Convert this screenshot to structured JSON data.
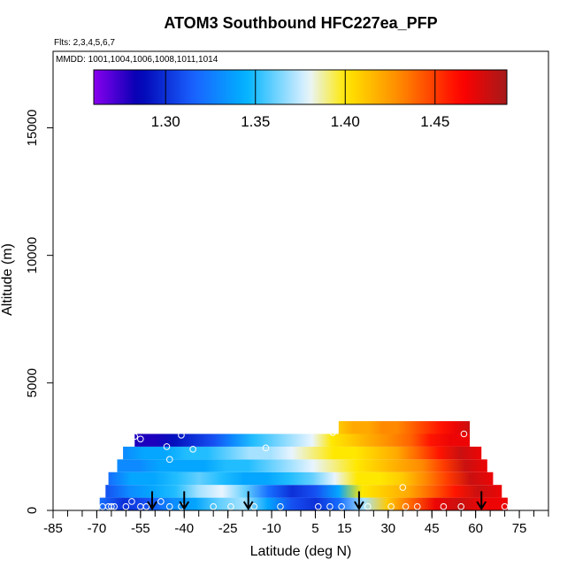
{
  "chart_data": {
    "type": "heatmap",
    "title": "ATOM3 Southbound HFC227ea_PFP",
    "flights_label": "Flts: 2,3,4,5,6,7",
    "mmdd_label": "MMDD: 1001,1004,1006,1008,1011,1014",
    "xlabel": "Latitude (deg N)",
    "ylabel": "Altitude (m)",
    "xlim": [
      -85,
      85
    ],
    "ylim": [
      0,
      18000
    ],
    "x_ticks": [
      "-85",
      "-70",
      "-55",
      "-40",
      "-25",
      "-10",
      "5",
      "15",
      "30",
      "45",
      "60",
      "75"
    ],
    "y_ticks": [
      "0",
      "5000",
      "10000",
      "15000"
    ],
    "colorbar": {
      "range": [
        1.26,
        1.49
      ],
      "ticks": [
        "1.30",
        "1.35",
        "1.40",
        "1.45"
      ]
    },
    "colors": {
      "violet": "#8a00f0",
      "dark_blue": "#0000b0",
      "blue": "#1a60ff",
      "sky": "#00b4ff",
      "light": "#e8f4ff",
      "yellow": "#ffe800",
      "orange": "#ff8a00",
      "red": "#ff0000",
      "dark_red": "#a51a1a"
    },
    "altitude_bands": [
      {
        "alt": [
          0,
          500
        ],
        "lat": [
          -69,
          71
        ],
        "values": [
          1.32,
          1.3,
          1.31,
          1.33,
          1.34,
          1.36,
          1.37,
          1.34,
          1.31,
          1.3,
          1.32,
          1.37,
          1.41,
          1.44,
          1.47,
          1.48,
          1.47,
          1.47
        ]
      },
      {
        "alt": [
          500,
          1000
        ],
        "lat": [
          -67,
          69
        ],
        "values": [
          1.31,
          1.33,
          1.34,
          1.35,
          1.37,
          1.38,
          1.36,
          1.32,
          1.3,
          1.31,
          1.34,
          1.4,
          1.41,
          1.42,
          1.44,
          1.46,
          1.48,
          1.47
        ]
      },
      {
        "alt": [
          1000,
          1500
        ],
        "lat": [
          -66,
          66
        ],
        "values": [
          1.32,
          1.34,
          1.34,
          1.35,
          1.36,
          1.35,
          1.34,
          1.34,
          1.35,
          1.36,
          1.38,
          1.4,
          1.4,
          1.41,
          1.43,
          1.45,
          1.48,
          1.47
        ]
      },
      {
        "alt": [
          1500,
          2000
        ],
        "lat": [
          -63,
          64
        ],
        "values": [
          1.33,
          1.33,
          1.34,
          1.34,
          1.34,
          1.35,
          1.35,
          1.36,
          1.37,
          1.38,
          1.39,
          1.4,
          1.41,
          1.42,
          1.43,
          1.45,
          1.48,
          1.47
        ]
      },
      {
        "alt": [
          2000,
          2500
        ],
        "lat": [
          -61,
          62
        ],
        "values": [
          1.33,
          1.34,
          1.34,
          1.35,
          1.35,
          1.36,
          1.37,
          1.37,
          1.38,
          1.39,
          1.4,
          1.4,
          1.41,
          1.42,
          1.44,
          1.46,
          1.48,
          1.47
        ]
      },
      {
        "alt": [
          2500,
          3000
        ],
        "lat": [
          -57,
          58
        ],
        "values": [
          1.28,
          1.28,
          1.29,
          1.3,
          1.31,
          1.33,
          1.35,
          1.36,
          1.37,
          1.38,
          1.4,
          1.41,
          1.42,
          1.43,
          1.44,
          1.46,
          1.47,
          1.47
        ]
      },
      {
        "alt": [
          3000,
          3500
        ],
        "lat": [
          13,
          58
        ],
        "values": [
          1.41,
          1.42,
          1.42,
          1.43,
          1.43,
          1.44,
          1.45,
          1.46,
          1.47,
          1.48
        ]
      }
    ],
    "sample_points": [
      [
        -68,
        150
      ],
      [
        -66,
        150
      ],
      [
        -65,
        150
      ],
      [
        -64,
        150
      ],
      [
        -60,
        150
      ],
      [
        -58,
        350
      ],
      [
        -55,
        150
      ],
      [
        -53,
        150
      ],
      [
        -48,
        350
      ],
      [
        -45,
        150
      ],
      [
        -41,
        150
      ],
      [
        -30,
        150
      ],
      [
        -24,
        150
      ],
      [
        -16,
        150
      ],
      [
        -7,
        150
      ],
      [
        6,
        150
      ],
      [
        10,
        150
      ],
      [
        14,
        150
      ],
      [
        23,
        150
      ],
      [
        31,
        150
      ],
      [
        36,
        150
      ],
      [
        40,
        150
      ],
      [
        49,
        150
      ],
      [
        55,
        150
      ],
      [
        70,
        150
      ],
      [
        -57,
        2900
      ],
      [
        -55,
        2800
      ],
      [
        -46,
        2500
      ],
      [
        -45,
        2000
      ],
      [
        -41,
        2950
      ],
      [
        -37,
        2400
      ],
      [
        -12,
        2450
      ],
      [
        11,
        3050
      ],
      [
        35,
        900
      ],
      [
        56,
        3000
      ]
    ],
    "flight_arrows_lat": [
      -51,
      -40,
      -18,
      20,
      62
    ]
  }
}
